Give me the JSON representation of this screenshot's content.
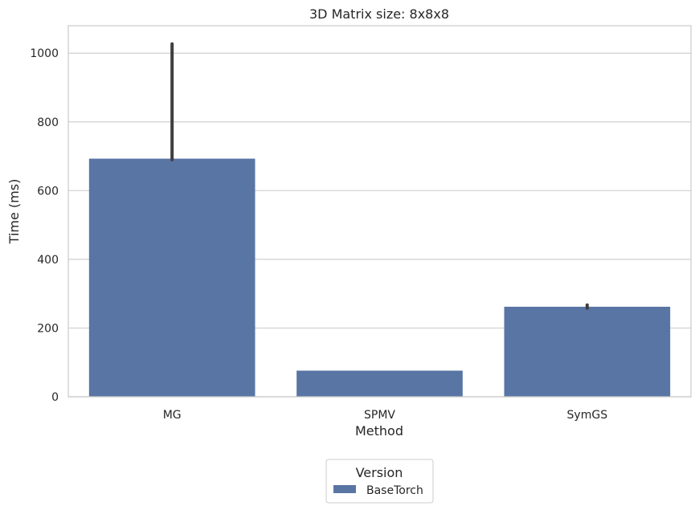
{
  "chart_data": {
    "type": "bar",
    "title": "3D Matrix size: 8x8x8",
    "xlabel": "Method",
    "ylabel": "Time (ms)",
    "categories": [
      "MG",
      "SPMV",
      "SymGS"
    ],
    "series": [
      {
        "name": "BaseTorch",
        "values": [
          693,
          76,
          262
        ],
        "error_low": [
          690,
          76,
          258
        ],
        "error_high": [
          1027,
          76,
          267
        ]
      }
    ],
    "ylim": [
      0,
      1080
    ],
    "yticks": [
      0,
      200,
      400,
      600,
      800,
      1000
    ],
    "grid": true,
    "legend": {
      "title": "Version",
      "placement": "bottom-center"
    },
    "colors": {
      "bar": "#5975a4",
      "error": "#3f3f3f",
      "grid": "#d0d0d0",
      "spine": "#cccccc"
    }
  }
}
